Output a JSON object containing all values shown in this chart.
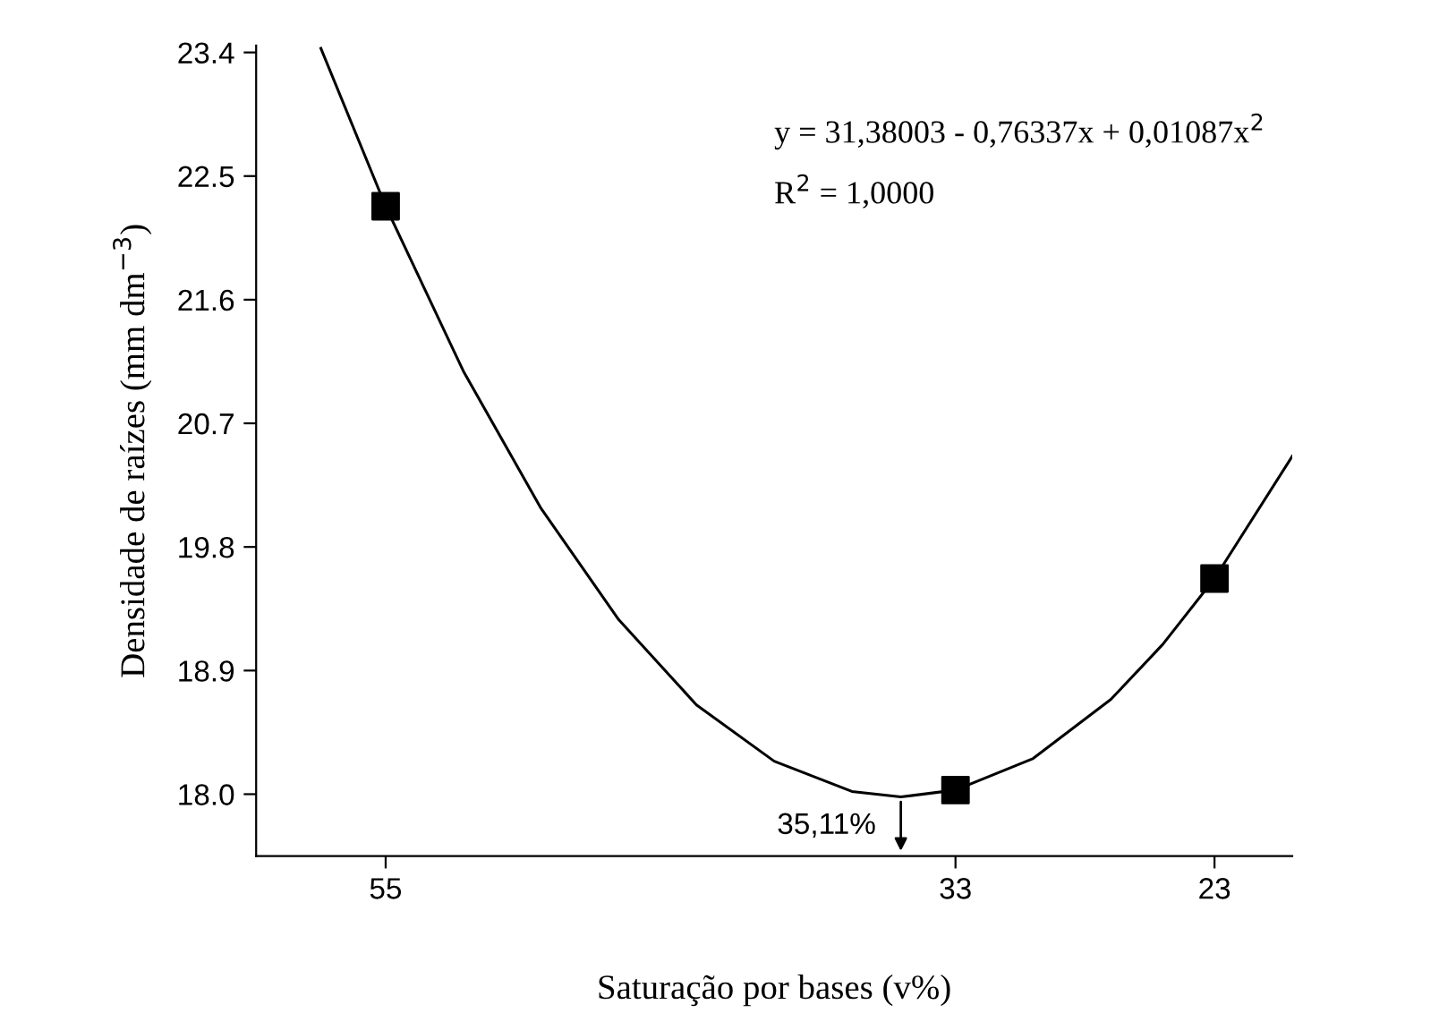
{
  "chart_data": {
    "type": "scatter",
    "xlabel": "Saturação por bases (v%)",
    "ylabel": "Densidade de raízes (mm dm$^{−3}$)",
    "xlim": [
      60,
      20
    ],
    "xticks": [
      55,
      33,
      23
    ],
    "ylim": [
      17.55,
      23.45
    ],
    "yticks": [
      {
        "value": 18.0,
        "label": "18.0"
      },
      18.9,
      19.8,
      20.7,
      21.6,
      22.5,
      23.4
    ],
    "grid": false,
    "legend": false,
    "series": [
      {
        "color": "#000000",
        "marker": "square",
        "x": [
          55,
          33,
          23
        ],
        "values": [
          22.28,
          18.03,
          19.57
        ]
      },
      {
        "type": "line",
        "color": "#000000",
        "marker": "none",
        "line_style": "solid",
        "x": [
          57.5,
          55,
          52,
          49,
          46,
          43,
          40,
          37,
          35.11,
          33,
          30,
          27,
          25,
          23,
          20
        ],
        "values": [
          23.43,
          22.28,
          21.08,
          20.08,
          19.27,
          18.65,
          18.24,
          18.02,
          17.98,
          18.03,
          18.26,
          18.69,
          19.09,
          19.57,
          20.46
        ]
      }
    ],
    "annotations": [
      {
        "text": "35,11%",
        "x": 35.11,
        "y": 17.98
      },
      "y = 31,38003 - 0,76337x + 0,01087x$^{2}$",
      "R$^{2}$ = 1,0000"
    ]
  }
}
